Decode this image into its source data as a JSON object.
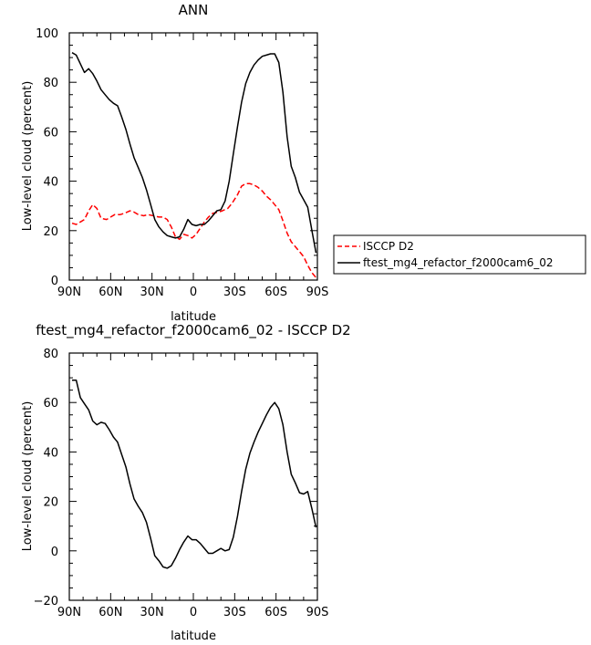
{
  "chart_data": [
    {
      "type": "line",
      "title": "ANN",
      "xlabel": "latitude",
      "ylabel": "Low-level cloud (percent)",
      "xlim": [
        90,
        -90
      ],
      "ylim": [
        0,
        100
      ],
      "xticks": [
        {
          "value": 90,
          "label": "90N"
        },
        {
          "value": 60,
          "label": "60N"
        },
        {
          "value": 30,
          "label": "30N"
        },
        {
          "value": 0,
          "label": "0"
        },
        {
          "value": -30,
          "label": "30S"
        },
        {
          "value": -60,
          "label": "60S"
        },
        {
          "value": -90,
          "label": "90S"
        }
      ],
      "yticks": [
        0,
        20,
        40,
        60,
        80,
        100
      ],
      "legend": {
        "placement": "right"
      },
      "series": [
        {
          "name": "ISCCP D2",
          "color": "#ff0000",
          "dash": "dashed",
          "x": [
            88,
            85,
            82,
            79,
            76,
            73,
            70,
            67,
            63,
            60,
            57,
            53,
            50,
            46,
            43,
            40,
            36,
            33,
            29,
            25,
            22,
            19,
            16,
            13,
            10,
            7,
            4,
            1,
            -2,
            -5,
            -8,
            -11,
            -14,
            -18,
            -21,
            -25,
            -28,
            -32,
            -35,
            -38,
            -41,
            -44,
            -47,
            -50,
            -53,
            -56,
            -59,
            -62,
            -65,
            -68,
            -71,
            -74,
            -77,
            -80,
            -83,
            -86,
            -89
          ],
          "y": [
            23,
            22.5,
            23.5,
            24.5,
            28,
            30.5,
            29,
            25,
            24.5,
            25.5,
            26.5,
            26.5,
            27,
            28,
            27.5,
            26.5,
            26,
            26.5,
            26,
            25.5,
            25.5,
            24.5,
            21.5,
            17.5,
            16.5,
            18.5,
            18,
            17,
            18.5,
            21,
            23.5,
            25.5,
            27,
            27.5,
            28,
            29,
            31,
            34.5,
            38,
            39,
            39,
            38.5,
            37.5,
            36,
            34,
            32.5,
            30.5,
            28.5,
            24,
            19,
            15.5,
            13.5,
            11.5,
            9.5,
            6,
            3,
            1
          ]
        },
        {
          "name": "ftest_mg4_refactor_f2000cam6_02",
          "color": "#000000",
          "dash": "solid",
          "x": [
            88,
            85,
            82,
            79,
            76,
            73,
            70,
            67,
            64,
            61,
            58,
            55,
            52,
            49,
            46,
            43,
            40,
            37,
            34,
            31,
            28,
            25,
            22,
            19,
            16,
            13,
            10,
            7,
            4,
            1,
            -2,
            -5,
            -8,
            -11,
            -14,
            -17,
            -20,
            -23,
            -26,
            -29,
            -32,
            -35,
            -38,
            -41,
            -44,
            -47,
            -50,
            -53,
            -56,
            -59,
            -62,
            -65,
            -68,
            -71,
            -74,
            -77,
            -80,
            -83,
            -86,
            -89
          ],
          "y": [
            92,
            91,
            87.5,
            84,
            85.5,
            83.5,
            80.5,
            77,
            75,
            73,
            71.5,
            70.5,
            66,
            61,
            55,
            49.5,
            45.5,
            41.5,
            36.5,
            30.5,
            24.5,
            21.5,
            19.5,
            18,
            17.5,
            17,
            17.5,
            20.5,
            24.5,
            22.5,
            22,
            22.5,
            22.5,
            24,
            26,
            28,
            28.5,
            32,
            40,
            51,
            62,
            72,
            79.5,
            84,
            87,
            89,
            90.5,
            91,
            91.5,
            91.5,
            88,
            76,
            58,
            46,
            41.5,
            35.5,
            32.5,
            29.5,
            20,
            11
          ]
        }
      ]
    },
    {
      "type": "line",
      "title": "ftest_mg4_refactor_f2000cam6_02 - ISCCP D2",
      "xlabel": "latitude",
      "ylabel": "Low-level cloud (percent)",
      "xlim": [
        90,
        -90
      ],
      "ylim": [
        -20,
        80
      ],
      "xticks": [
        {
          "value": 90,
          "label": "90N"
        },
        {
          "value": 60,
          "label": "60N"
        },
        {
          "value": 30,
          "label": "30N"
        },
        {
          "value": 0,
          "label": "0"
        },
        {
          "value": -30,
          "label": "30S"
        },
        {
          "value": -60,
          "label": "60S"
        },
        {
          "value": -90,
          "label": "90S"
        }
      ],
      "yticks": [
        -20,
        0,
        20,
        40,
        60,
        80
      ],
      "series": [
        {
          "color": "#000000",
          "dash": "solid",
          "x": [
            88,
            85,
            82,
            79,
            76,
            73,
            70,
            67,
            64,
            61,
            58,
            55,
            52,
            49,
            46,
            43,
            40,
            37,
            34,
            31,
            28,
            25,
            22,
            19,
            16,
            13,
            10,
            7,
            4,
            1,
            -2,
            -5,
            -8,
            -11,
            -14,
            -17,
            -20,
            -23,
            -26,
            -29,
            -32,
            -35,
            -38,
            -41,
            -44,
            -47,
            -50,
            -53,
            -56,
            -59,
            -62,
            -65,
            -68,
            -71,
            -74,
            -77,
            -80,
            -83,
            -86,
            -89
          ],
          "y": [
            69,
            69,
            62,
            59.5,
            57,
            52.5,
            51,
            52,
            51.5,
            49,
            46,
            44,
            39,
            34,
            27,
            21,
            18,
            15.5,
            11.5,
            5,
            -2,
            -4,
            -6.5,
            -7,
            -6,
            -3,
            0.5,
            3.5,
            6,
            4.5,
            4.5,
            3,
            1,
            -1,
            -1,
            0,
            1,
            0,
            0.5,
            5.5,
            14,
            24,
            33,
            39.5,
            44,
            48,
            51.5,
            55,
            58,
            60,
            57.5,
            51,
            40,
            31,
            27.5,
            23.5,
            23,
            24,
            17,
            9.5
          ]
        }
      ]
    }
  ]
}
